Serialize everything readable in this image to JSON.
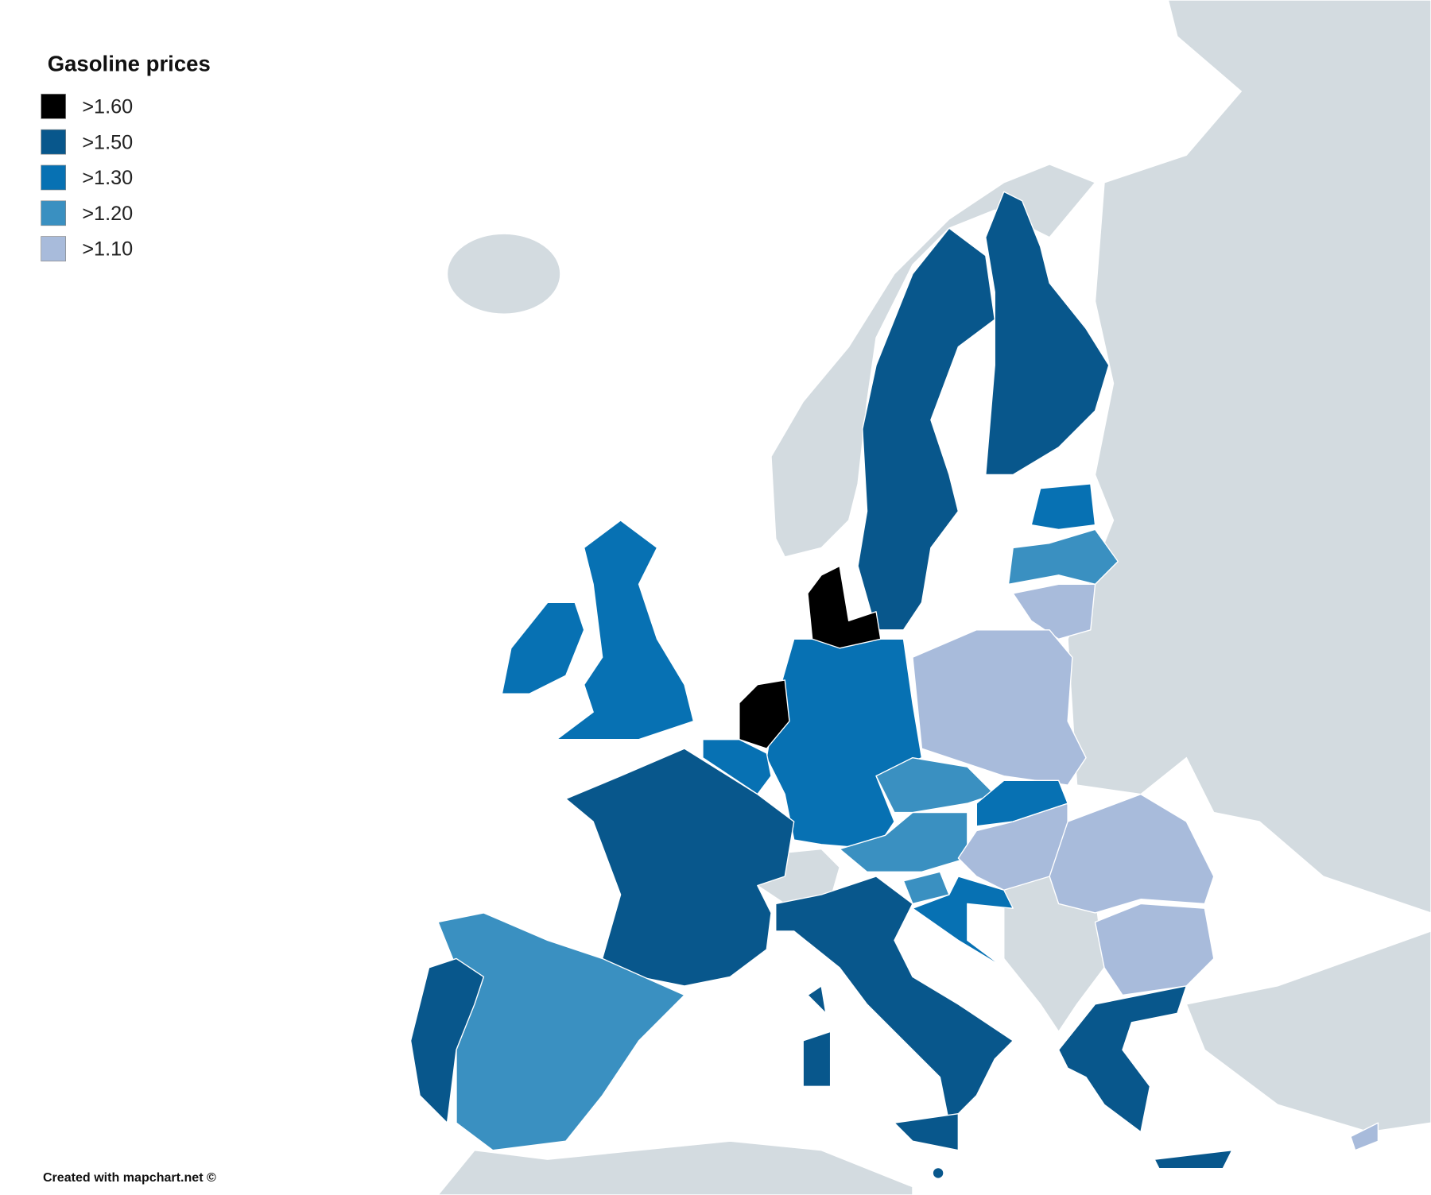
{
  "legend": {
    "title": "Gasoline prices",
    "items": [
      {
        "label": ">1.60",
        "color": "#000000"
      },
      {
        "label": ">1.50",
        "color": "#08578c"
      },
      {
        "label": ">1.30",
        "color": "#0771b3"
      },
      {
        "label": ">1.20",
        "color": "#3a90c1"
      },
      {
        "label": ">1.10",
        "color": "#a8bbdb"
      }
    ]
  },
  "footer": {
    "credit": "Created with mapchart.net ©"
  }
}
